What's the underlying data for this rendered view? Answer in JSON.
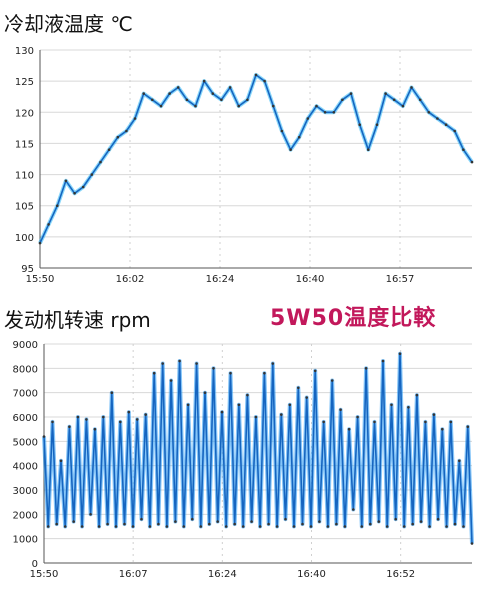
{
  "annotation": "5W50温度比較",
  "chart_data": [
    {
      "type": "line",
      "title": "冷却液温度 ℃",
      "x_ticks": [
        "15:50",
        "16:02",
        "16:24",
        "16:40",
        "16:57"
      ],
      "y_ticks": [
        "95",
        "100",
        "105",
        "110",
        "115",
        "120",
        "125",
        "130"
      ],
      "ylim": [
        95,
        130
      ],
      "grid": true,
      "line_colors": [
        "#1565c0",
        "#29b6f6",
        "#2e7d32",
        "#333333"
      ],
      "x": [
        0,
        0.02,
        0.04,
        0.06,
        0.08,
        0.1,
        0.12,
        0.14,
        0.16,
        0.18,
        0.2,
        0.22,
        0.24,
        0.26,
        0.28,
        0.3,
        0.32,
        0.34,
        0.36,
        0.38,
        0.4,
        0.42,
        0.44,
        0.46,
        0.48,
        0.5,
        0.52,
        0.54,
        0.56,
        0.58,
        0.6,
        0.62,
        0.64,
        0.66,
        0.68,
        0.7,
        0.72,
        0.74,
        0.76,
        0.78,
        0.8,
        0.82,
        0.84,
        0.86,
        0.88,
        0.9,
        0.92,
        0.94,
        0.96,
        0.98,
        1.0
      ],
      "values": [
        99,
        102,
        105,
        109,
        107,
        108,
        110,
        112,
        114,
        116,
        117,
        119,
        123,
        122,
        121,
        123,
        124,
        122,
        121,
        125,
        123,
        122,
        124,
        121,
        122,
        126,
        125,
        121,
        117,
        114,
        116,
        119,
        121,
        120,
        120,
        122,
        123,
        118,
        114,
        118,
        123,
        122,
        121,
        124,
        122,
        120,
        119,
        118,
        117,
        114,
        112
      ]
    },
    {
      "type": "line",
      "title": "发动机转速 rpm",
      "x_ticks": [
        "15:50",
        "16:07",
        "16:24",
        "16:40",
        "16:52"
      ],
      "y_ticks": [
        "0",
        "1000",
        "2000",
        "3000",
        "4000",
        "5000",
        "6000",
        "7000",
        "8000",
        "9000"
      ],
      "ylim": [
        0,
        9000
      ],
      "grid": true,
      "line_colors": [
        "#1565c0",
        "#2196f3",
        "#333333"
      ],
      "values": [
        5200,
        1500,
        5800,
        1600,
        4200,
        1500,
        5600,
        1700,
        6000,
        1500,
        5900,
        2000,
        5500,
        1500,
        6000,
        1600,
        7000,
        1500,
        5800,
        1600,
        6200,
        1500,
        5900,
        1800,
        6100,
        1500,
        7800,
        1600,
        8200,
        1500,
        7500,
        1700,
        8300,
        1500,
        6500,
        1800,
        8200,
        1500,
        7000,
        1600,
        8000,
        1700,
        6200,
        1500,
        7800,
        1600,
        6500,
        1500,
        6900,
        1700,
        6000,
        1500,
        7800,
        1600,
        8200,
        1500,
        6100,
        1800,
        6500,
        1500,
        7200,
        1600,
        6800,
        1500,
        7900,
        1700,
        5800,
        1500,
        7500,
        1600,
        6300,
        1500,
        5500,
        2200,
        6000,
        1500,
        8000,
        1600,
        5800,
        1700,
        8300,
        1500,
        6500,
        1800,
        8600,
        1500,
        6400,
        1600,
        6900,
        1700,
        5800,
        1500,
        6100,
        1800,
        5500,
        1500,
        5800,
        1600,
        4200,
        1500,
        5600,
        800
      ]
    }
  ]
}
